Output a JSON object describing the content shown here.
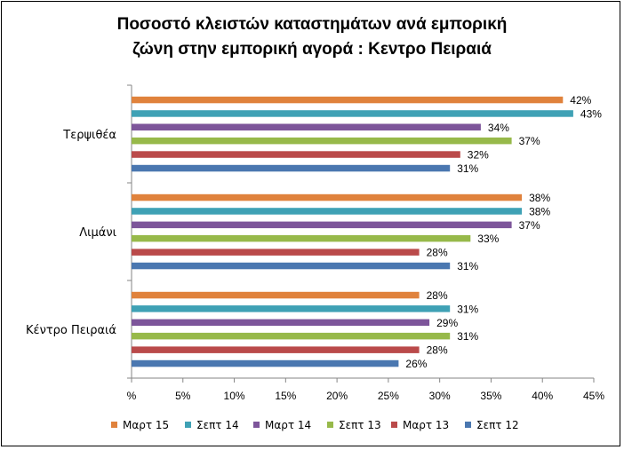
{
  "chart_data": {
    "type": "bar",
    "orientation": "horizontal",
    "title_line1": "Ποσοστό κλειστών καταστημάτων ανά εμπορική",
    "title_line2": "ζώνη στην εμπορική αγορά : Κεντρο Πειραιά",
    "categories": [
      "Τερψιθέα",
      "Λιμάνι",
      "Κέντρο Πειραιά"
    ],
    "series": [
      {
        "name": "Μαρτ 15",
        "color": "#E0823C",
        "values": [
          42,
          38,
          28
        ]
      },
      {
        "name": "Σεπτ 14",
        "color": "#3FA1B5",
        "values": [
          43,
          38,
          31
        ]
      },
      {
        "name": "Μαρτ 14",
        "color": "#7D559A",
        "values": [
          34,
          37,
          29
        ]
      },
      {
        "name": "Σεπτ 13",
        "color": "#97B94A",
        "values": [
          37,
          33,
          31
        ]
      },
      {
        "name": "Μαρτ 13",
        "color": "#BA4A4A",
        "values": [
          32,
          28,
          28
        ]
      },
      {
        "name": "Σεπτ 12",
        "color": "#4A77B0",
        "values": [
          31,
          31,
          26
        ]
      }
    ],
    "value_labels": [
      [
        "42%",
        "38%",
        "28%"
      ],
      [
        "43%",
        "38%",
        "31%"
      ],
      [
        "34%",
        "37%",
        "29%"
      ],
      [
        "37%",
        "33%",
        "31%"
      ],
      [
        "32%",
        "28%",
        "28%"
      ],
      [
        "31%",
        "31%",
        "26%"
      ]
    ],
    "x_ticks": [
      "%",
      "5%",
      "10%",
      "15%",
      "20%",
      "25%",
      "30%",
      "35%",
      "40%",
      "45%"
    ],
    "xlim": [
      0,
      45
    ],
    "legend_position": "bottom",
    "grid": false
  }
}
